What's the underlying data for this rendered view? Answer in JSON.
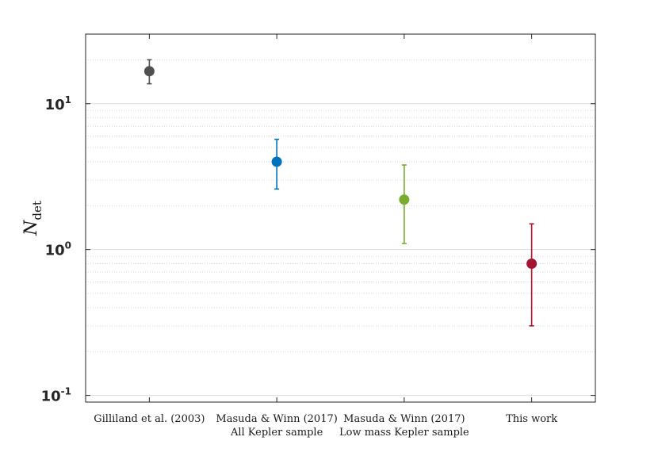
{
  "chart_data": {
    "type": "scatter",
    "subtype": "errorbar",
    "y_scale": "log",
    "ylim": [
      0.09,
      30
    ],
    "ylabel_main": "N",
    "ylabel_sub": "det",
    "y_ticks": [
      {
        "value": 0.1,
        "base": "10",
        "exp": "-1"
      },
      {
        "value": 1,
        "base": "10",
        "exp": "0"
      },
      {
        "value": 10,
        "base": "10",
        "exp": "1"
      }
    ],
    "grid": "horizontal dotted minor, solid major",
    "categories": [
      {
        "line1": "Gilliland et al. (2003)",
        "line2": ""
      },
      {
        "line1": "Masuda & Winn (2017)",
        "line2": "All Kepler sample"
      },
      {
        "line1": "Masuda & Winn (2017)",
        "line2": "Low mass Kepler sample"
      },
      {
        "line1": "This work",
        "line2": ""
      }
    ],
    "points": [
      {
        "value": 16.7,
        "lower": 13.7,
        "upper": 20.0,
        "color": "#505050"
      },
      {
        "value": 4.0,
        "lower": 2.6,
        "upper": 5.7,
        "color": "#0072BD"
      },
      {
        "value": 2.2,
        "lower": 1.1,
        "upper": 3.8,
        "color": "#77AC30"
      },
      {
        "value": 0.8,
        "lower": 0.3,
        "upper": 1.5,
        "color": "#A2142F"
      }
    ]
  }
}
